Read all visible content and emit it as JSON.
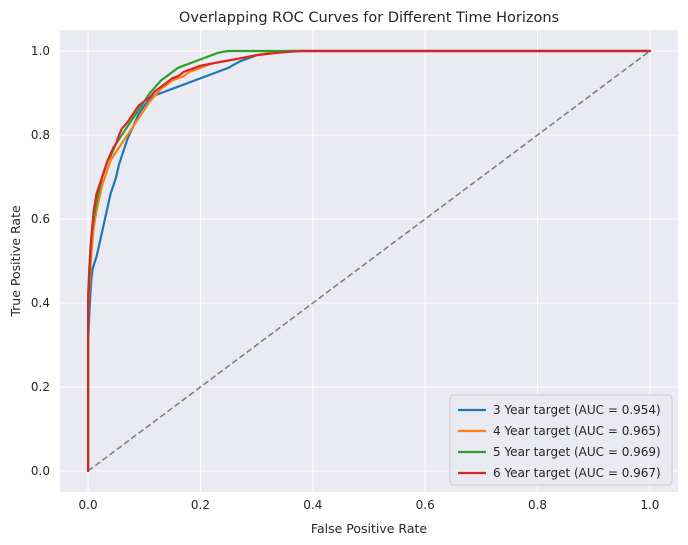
{
  "chart_data": {
    "type": "line",
    "title": "Overlapping ROC Curves for Different Time Horizons",
    "xlabel": "False Positive Rate",
    "ylabel": "True Positive Rate",
    "xlim": [
      -0.05,
      1.05
    ],
    "ylim": [
      -0.05,
      1.05
    ],
    "x_ticks": [
      0.0,
      0.2,
      0.4,
      0.6,
      0.8,
      1.0
    ],
    "y_ticks": [
      0.0,
      0.2,
      0.4,
      0.6,
      0.8,
      1.0
    ],
    "x_tick_labels": [
      "0.0",
      "0.2",
      "0.4",
      "0.6",
      "0.8",
      "1.0"
    ],
    "y_tick_labels": [
      "0.0",
      "0.2",
      "0.4",
      "0.6",
      "0.8",
      "1.0"
    ],
    "grid": true,
    "legend_position": "lower-right",
    "background": "#eaeaf2",
    "series": [
      {
        "name": "3 Year target (AUC = 0.954)",
        "color": "#1f77b4",
        "x": [
          0,
          0,
          0.002,
          0.004,
          0.006,
          0.008,
          0.01,
          0.015,
          0.02,
          0.025,
          0.03,
          0.035,
          0.04,
          0.045,
          0.05,
          0.055,
          0.06,
          0.065,
          0.07,
          0.08,
          0.09,
          0.1,
          0.11,
          0.12,
          0.13,
          0.14,
          0.15,
          0.16,
          0.17,
          0.18,
          0.19,
          0.2,
          0.21,
          0.22,
          0.23,
          0.24,
          0.25,
          0.26,
          0.27,
          0.28,
          0.29,
          0.3,
          0.32,
          0.34,
          0.36,
          0.38,
          0.4,
          0.5,
          0.6,
          0.7,
          0.8,
          0.9,
          1.0
        ],
        "y": [
          0,
          0.3,
          0.37,
          0.42,
          0.46,
          0.48,
          0.49,
          0.51,
          0.54,
          0.57,
          0.6,
          0.63,
          0.66,
          0.68,
          0.7,
          0.73,
          0.75,
          0.77,
          0.79,
          0.82,
          0.85,
          0.87,
          0.885,
          0.895,
          0.9,
          0.905,
          0.91,
          0.915,
          0.92,
          0.925,
          0.93,
          0.935,
          0.94,
          0.945,
          0.95,
          0.955,
          0.96,
          0.968,
          0.975,
          0.98,
          0.985,
          0.99,
          0.995,
          0.998,
          1.0,
          1.0,
          1.0,
          1.0,
          1.0,
          1.0,
          1.0,
          1.0,
          1.0
        ]
      },
      {
        "name": "4 Year target (AUC = 0.965)",
        "color": "#ff7f0e",
        "x": [
          0,
          0,
          0.002,
          0.004,
          0.006,
          0.008,
          0.01,
          0.015,
          0.02,
          0.025,
          0.03,
          0.035,
          0.04,
          0.045,
          0.05,
          0.055,
          0.06,
          0.07,
          0.08,
          0.09,
          0.1,
          0.11,
          0.12,
          0.13,
          0.14,
          0.15,
          0.16,
          0.17,
          0.18,
          0.19,
          0.2,
          0.22,
          0.24,
          0.26,
          0.28,
          0.3,
          0.32,
          0.34,
          0.36,
          0.4,
          0.5,
          0.6,
          0.7,
          0.8,
          0.9,
          1.0
        ],
        "y": [
          0,
          0.38,
          0.43,
          0.48,
          0.52,
          0.55,
          0.58,
          0.62,
          0.65,
          0.68,
          0.7,
          0.72,
          0.74,
          0.75,
          0.76,
          0.77,
          0.78,
          0.8,
          0.82,
          0.84,
          0.86,
          0.88,
          0.895,
          0.91,
          0.92,
          0.93,
          0.935,
          0.94,
          0.95,
          0.955,
          0.96,
          0.97,
          0.975,
          0.98,
          0.985,
          0.99,
          0.995,
          0.998,
          1.0,
          1.0,
          1.0,
          1.0,
          1.0,
          1.0,
          1.0,
          1.0
        ]
      },
      {
        "name": "5 Year target (AUC = 0.969)",
        "color": "#2ca02c",
        "x": [
          0,
          0,
          0.002,
          0.004,
          0.006,
          0.008,
          0.01,
          0.015,
          0.02,
          0.025,
          0.03,
          0.035,
          0.04,
          0.05,
          0.06,
          0.07,
          0.08,
          0.09,
          0.1,
          0.11,
          0.12,
          0.13,
          0.14,
          0.15,
          0.16,
          0.17,
          0.18,
          0.19,
          0.2,
          0.21,
          0.22,
          0.23,
          0.24,
          0.25,
          0.26,
          0.28,
          0.3,
          0.4,
          0.5,
          0.6,
          0.7,
          0.8,
          0.9,
          1.0
        ],
        "y": [
          0,
          0.42,
          0.48,
          0.53,
          0.56,
          0.58,
          0.6,
          0.64,
          0.67,
          0.7,
          0.72,
          0.74,
          0.75,
          0.78,
          0.8,
          0.82,
          0.84,
          0.86,
          0.88,
          0.9,
          0.915,
          0.93,
          0.94,
          0.95,
          0.96,
          0.965,
          0.97,
          0.975,
          0.98,
          0.985,
          0.99,
          0.995,
          0.998,
          1.0,
          1.0,
          1.0,
          1.0,
          1.0,
          1.0,
          1.0,
          1.0,
          1.0,
          1.0,
          1.0
        ]
      },
      {
        "name": "6 Year target (AUC = 0.967)",
        "color": "#d62728",
        "x": [
          0,
          0,
          0.002,
          0.004,
          0.006,
          0.008,
          0.01,
          0.015,
          0.02,
          0.025,
          0.03,
          0.035,
          0.04,
          0.045,
          0.05,
          0.055,
          0.06,
          0.07,
          0.08,
          0.09,
          0.1,
          0.11,
          0.12,
          0.13,
          0.14,
          0.15,
          0.16,
          0.17,
          0.18,
          0.19,
          0.2,
          0.22,
          0.24,
          0.26,
          0.28,
          0.3,
          0.32,
          0.34,
          0.36,
          0.38,
          0.4,
          0.5,
          0.6,
          0.7,
          0.8,
          0.9,
          1.0
        ],
        "y": [
          0,
          0.4,
          0.46,
          0.52,
          0.56,
          0.59,
          0.62,
          0.66,
          0.68,
          0.7,
          0.72,
          0.74,
          0.755,
          0.77,
          0.78,
          0.8,
          0.815,
          0.83,
          0.85,
          0.87,
          0.88,
          0.89,
          0.905,
          0.915,
          0.925,
          0.935,
          0.94,
          0.95,
          0.955,
          0.96,
          0.965,
          0.97,
          0.975,
          0.98,
          0.985,
          0.99,
          0.993,
          0.996,
          0.998,
          1.0,
          1.0,
          1.0,
          1.0,
          1.0,
          1.0,
          1.0,
          1.0
        ]
      }
    ],
    "reference_line": {
      "x": [
        0,
        1
      ],
      "y": [
        0,
        1
      ],
      "color": "#808080",
      "style": "dashed"
    }
  }
}
